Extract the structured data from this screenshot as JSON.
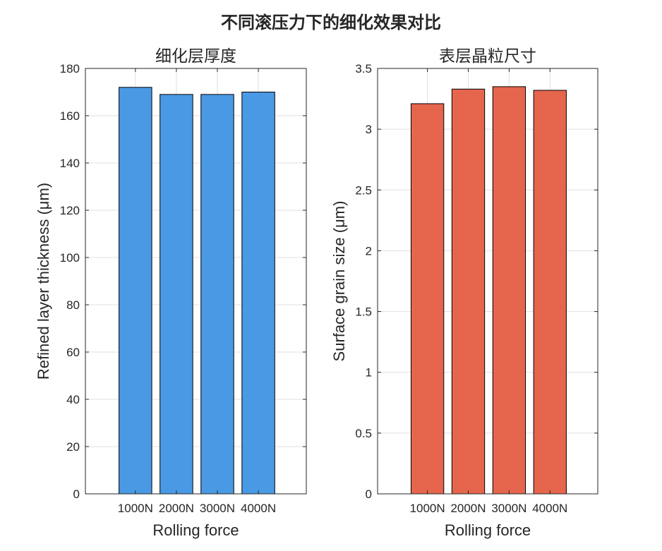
{
  "suptitle": "不同滚压力下的细化效果对比",
  "chart_data": [
    {
      "type": "bar",
      "title": "细化层厚度",
      "categories": [
        "1000N",
        "2000N",
        "3000N",
        "4000N"
      ],
      "values": [
        172,
        169,
        169,
        170
      ],
      "xlabel": "Rolling force",
      "ylabel": "Refined layer thickness (μm)",
      "ylim": [
        0,
        180
      ],
      "yticks": [
        0,
        20,
        40,
        60,
        80,
        100,
        120,
        140,
        160,
        180
      ],
      "ytick_labels": [
        "0",
        "20",
        "40",
        "60",
        "80",
        "100",
        "120",
        "140",
        "160",
        "180"
      ],
      "grid": true,
      "color": "#4A99E4"
    },
    {
      "type": "bar",
      "title": "表层晶粒尺寸",
      "categories": [
        "1000N",
        "2000N",
        "3000N",
        "4000N"
      ],
      "values": [
        3.21,
        3.33,
        3.35,
        3.32
      ],
      "xlabel": "Rolling force",
      "ylabel": "Surface grain size (μm)",
      "ylim": [
        0,
        3.5
      ],
      "yticks": [
        0,
        0.5,
        1,
        1.5,
        2,
        2.5,
        3,
        3.5
      ],
      "ytick_labels": [
        "0",
        "0.5",
        "1",
        "1.5",
        "2",
        "2.5",
        "3",
        "3.5"
      ],
      "grid": true,
      "color": "#E5664D"
    }
  ]
}
